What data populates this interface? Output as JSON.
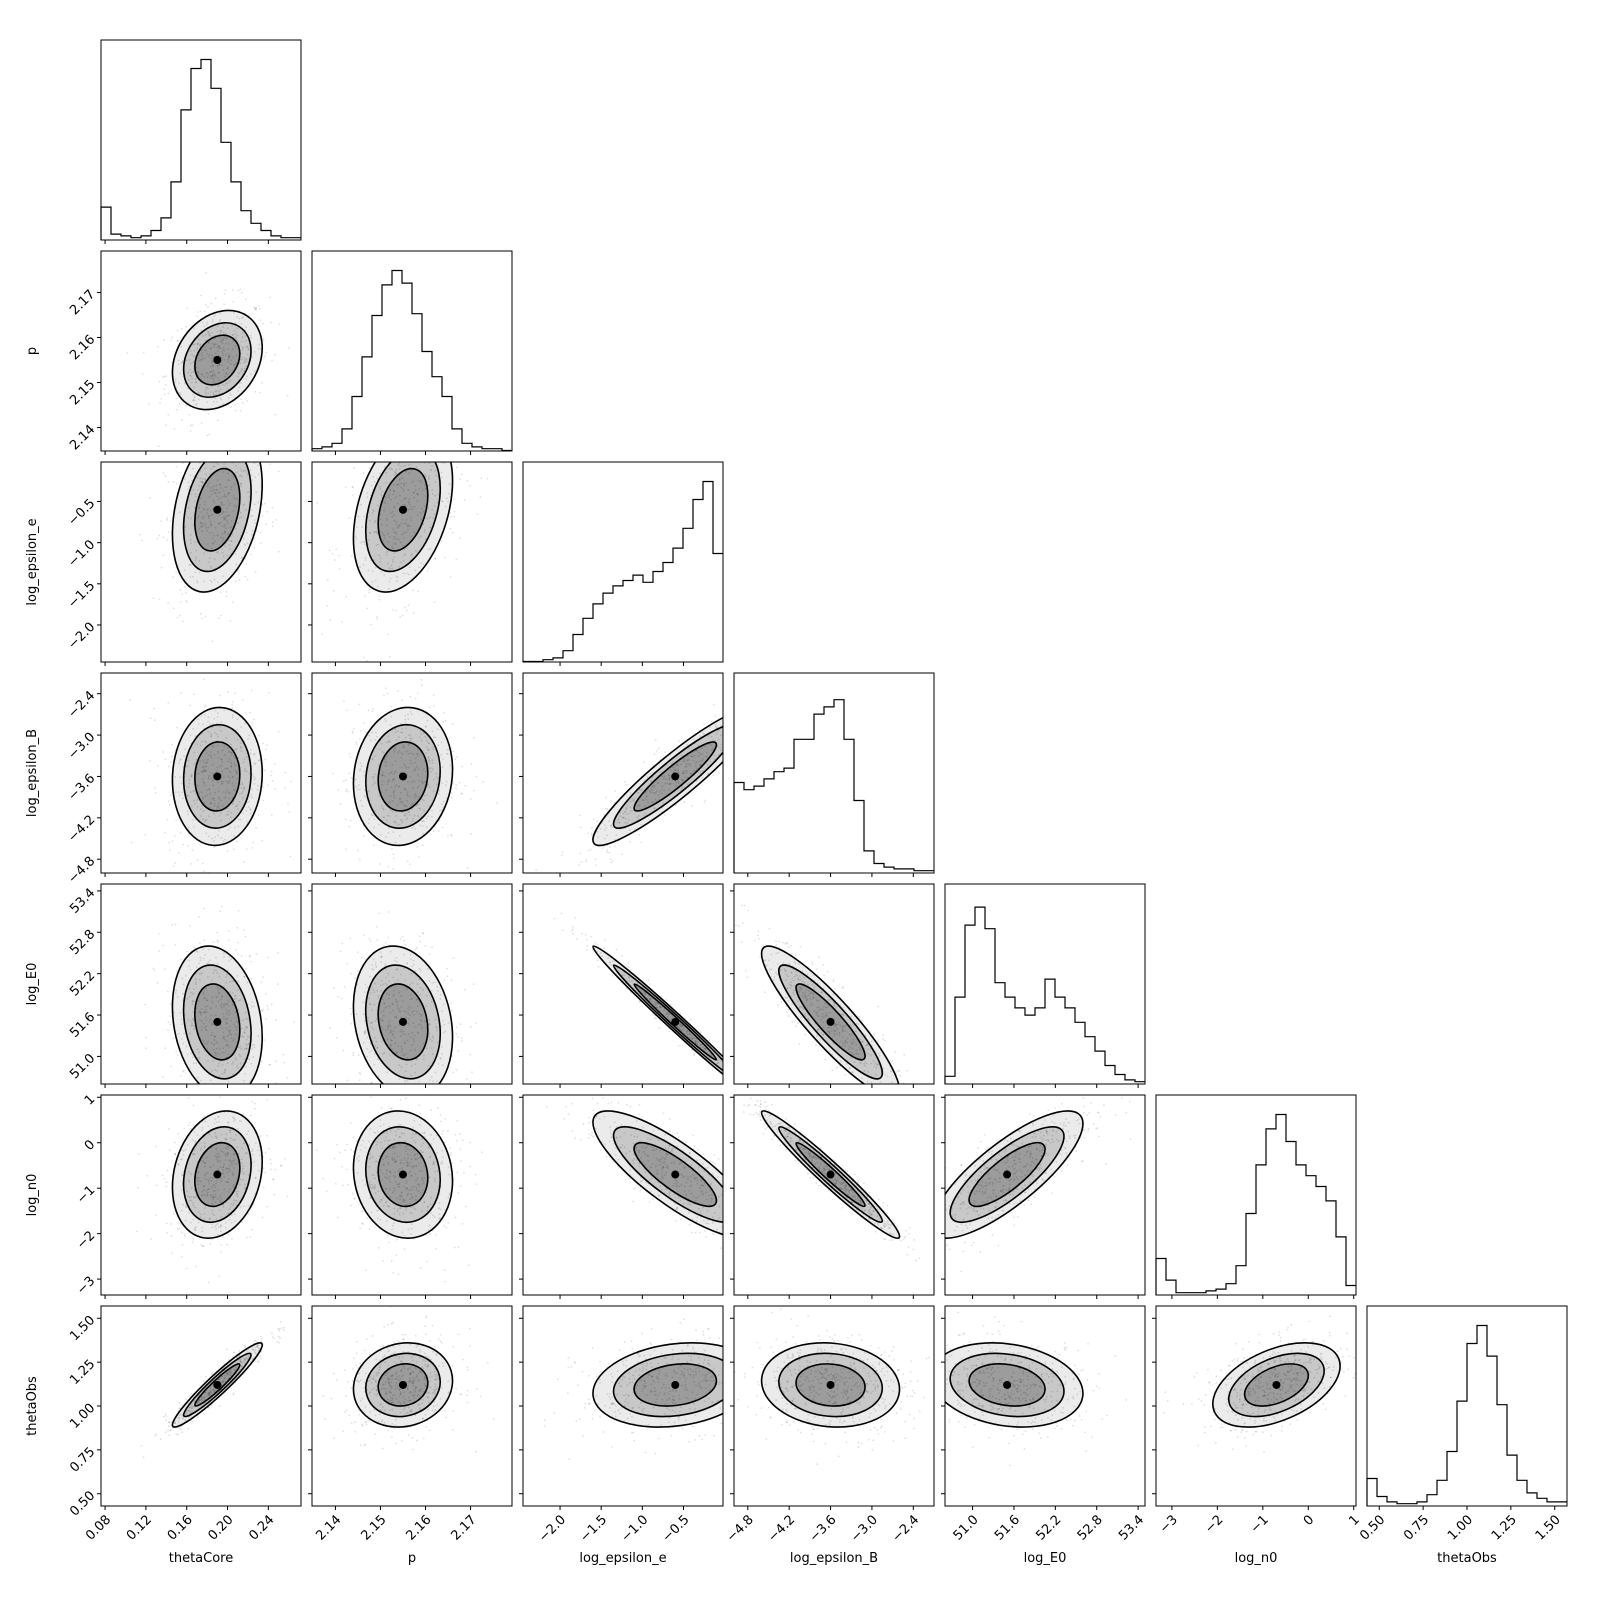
{
  "chart_data": {
    "type": "corner",
    "parameters": [
      {
        "name": "thetaCore",
        "xlabel": "thetaCore",
        "ylabel": "",
        "range": [
          0.076,
          0.272
        ],
        "ticks": [
          0.08,
          0.12,
          0.16,
          0.2,
          0.24
        ],
        "tick_labels": [
          "0.08",
          "0.12",
          "0.16",
          "0.20",
          "0.24"
        ],
        "mean": 0.19,
        "sd": 0.022,
        "hist": [
          0.18,
          0.03,
          0.02,
          0.01,
          0.02,
          0.05,
          0.12,
          0.32,
          0.72,
          0.95,
          1.0,
          0.84,
          0.54,
          0.32,
          0.16,
          0.09,
          0.05,
          0.02,
          0.01,
          0.01
        ]
      },
      {
        "name": "p",
        "xlabel": "p",
        "ylabel": "p",
        "range": [
          2.1348,
          2.1792
        ],
        "ticks": [
          2.14,
          2.15,
          2.16,
          2.17
        ],
        "tick_labels": [
          "2.14",
          "2.15",
          "2.16",
          "2.17"
        ],
        "mean": 2.155,
        "sd": 0.0055,
        "hist": [
          0.01,
          0.02,
          0.04,
          0.12,
          0.3,
          0.52,
          0.75,
          0.92,
          1.0,
          0.93,
          0.76,
          0.55,
          0.41,
          0.3,
          0.12,
          0.04,
          0.02,
          0.01,
          0.01,
          0.0
        ]
      },
      {
        "name": "log_epsilon_e",
        "xlabel": "log_epsilon_e",
        "ylabel": "log_epsilon_e",
        "range": [
          -2.45,
          -0.02
        ],
        "ticks": [
          -2.0,
          -1.5,
          -1.0,
          -0.5
        ],
        "tick_labels": [
          "−2.0",
          "−1.5",
          "−1.0",
          "−0.5"
        ],
        "mean": -0.6,
        "sd": 0.5,
        "hist": [
          0.0,
          0.0,
          0.01,
          0.02,
          0.06,
          0.15,
          0.24,
          0.32,
          0.38,
          0.42,
          0.45,
          0.48,
          0.44,
          0.5,
          0.55,
          0.63,
          0.74,
          0.9,
          1.0,
          0.6
        ]
      },
      {
        "name": "log_epsilon_B",
        "xlabel": "log_epsilon_B",
        "ylabel": "log_epsilon_B",
        "range": [
          -5.0,
          -2.1
        ],
        "ticks": [
          -4.8,
          -4.2,
          -3.6,
          -3.0,
          -2.4
        ],
        "tick_labels": [
          "−4.8",
          "−4.2",
          "−3.6",
          "−3.0",
          "−2.4"
        ],
        "mean": -3.6,
        "sd": 0.5,
        "hist": [
          0.5,
          0.46,
          0.48,
          0.52,
          0.56,
          0.58,
          0.74,
          0.74,
          0.88,
          0.92,
          0.96,
          0.74,
          0.4,
          0.12,
          0.05,
          0.03,
          0.02,
          0.02,
          0.01,
          0.01
        ]
      },
      {
        "name": "log_E0",
        "xlabel": "log_E0",
        "ylabel": "log_E0",
        "range": [
          50.6,
          53.5
        ],
        "ticks": [
          51.0,
          51.6,
          52.2,
          52.8,
          53.4
        ],
        "tick_labels": [
          "51.0",
          "51.6",
          "52.2",
          "52.8",
          "53.4"
        ],
        "mean": 51.5,
        "sd": 0.55,
        "hist": [
          0.04,
          0.48,
          0.88,
          0.98,
          0.86,
          0.56,
          0.48,
          0.42,
          0.38,
          0.42,
          0.58,
          0.48,
          0.42,
          0.34,
          0.26,
          0.18,
          0.1,
          0.05,
          0.02,
          0.01
        ]
      },
      {
        "name": "log_n0",
        "xlabel": "log_n0",
        "ylabel": "log_n0",
        "range": [
          -3.35,
          1.05
        ],
        "ticks": [
          -3,
          -2,
          -1,
          0,
          1
        ],
        "tick_labels": [
          "−3",
          "−2",
          "−1",
          "0",
          "1"
        ],
        "mean": -0.7,
        "sd": 0.7,
        "hist": [
          0.2,
          0.08,
          0.01,
          0.01,
          0.01,
          0.02,
          0.03,
          0.06,
          0.16,
          0.45,
          0.72,
          0.92,
          1.0,
          0.85,
          0.72,
          0.66,
          0.6,
          0.52,
          0.32,
          0.05
        ]
      },
      {
        "name": "thetaObs",
        "xlabel": "thetaObs",
        "ylabel": "thetaObs",
        "range": [
          0.43,
          1.57
        ],
        "ticks": [
          0.5,
          0.75,
          1.0,
          1.25,
          1.5
        ],
        "tick_labels": [
          "0.50",
          "0.75",
          "1.00",
          "1.25",
          "1.50"
        ],
        "mean": 1.12,
        "sd": 0.12,
        "hist": [
          0.15,
          0.05,
          0.02,
          0.01,
          0.01,
          0.02,
          0.06,
          0.14,
          0.3,
          0.58,
          0.9,
          1.0,
          0.83,
          0.56,
          0.28,
          0.14,
          0.07,
          0.04,
          0.02,
          0.02
        ]
      }
    ],
    "pairs": [
      {
        "x": "thetaCore",
        "y": "p",
        "corr": 0.25
      },
      {
        "x": "thetaCore",
        "y": "log_epsilon_e",
        "corr": 0.3
      },
      {
        "x": "p",
        "y": "log_epsilon_e",
        "corr": 0.35
      },
      {
        "x": "thetaCore",
        "y": "log_epsilon_B",
        "corr": 0.05
      },
      {
        "x": "p",
        "y": "log_epsilon_B",
        "corr": 0.1
      },
      {
        "x": "log_epsilon_e",
        "y": "log_epsilon_B",
        "corr": 0.92
      },
      {
        "x": "thetaCore",
        "y": "log_E0",
        "corr": -0.2
      },
      {
        "x": "p",
        "y": "log_E0",
        "corr": -0.2
      },
      {
        "x": "log_epsilon_e",
        "y": "log_E0",
        "corr": -0.99
      },
      {
        "x": "log_epsilon_B",
        "y": "log_E0",
        "corr": -0.9
      },
      {
        "x": "thetaCore",
        "y": "log_n0",
        "corr": 0.2
      },
      {
        "x": "p",
        "y": "log_n0",
        "corr": -0.1
      },
      {
        "x": "log_epsilon_e",
        "y": "log_n0",
        "corr": -0.82
      },
      {
        "x": "log_epsilon_B",
        "y": "log_n0",
        "corr": -0.97
      },
      {
        "x": "log_E0",
        "y": "log_n0",
        "corr": 0.8
      },
      {
        "x": "thetaCore",
        "y": "thetaObs",
        "corr": 0.95
      },
      {
        "x": "p",
        "y": "thetaObs",
        "corr": 0.1
      },
      {
        "x": "log_epsilon_e",
        "y": "thetaObs",
        "corr": 0.2
      },
      {
        "x": "log_epsilon_B",
        "y": "thetaObs",
        "corr": -0.1
      },
      {
        "x": "log_E0",
        "y": "thetaObs",
        "corr": -0.2
      },
      {
        "x": "log_n0",
        "y": "thetaObs",
        "corr": 0.45
      }
    ],
    "contour_levels": [
      1.0,
      1.5,
      2.0
    ]
  }
}
